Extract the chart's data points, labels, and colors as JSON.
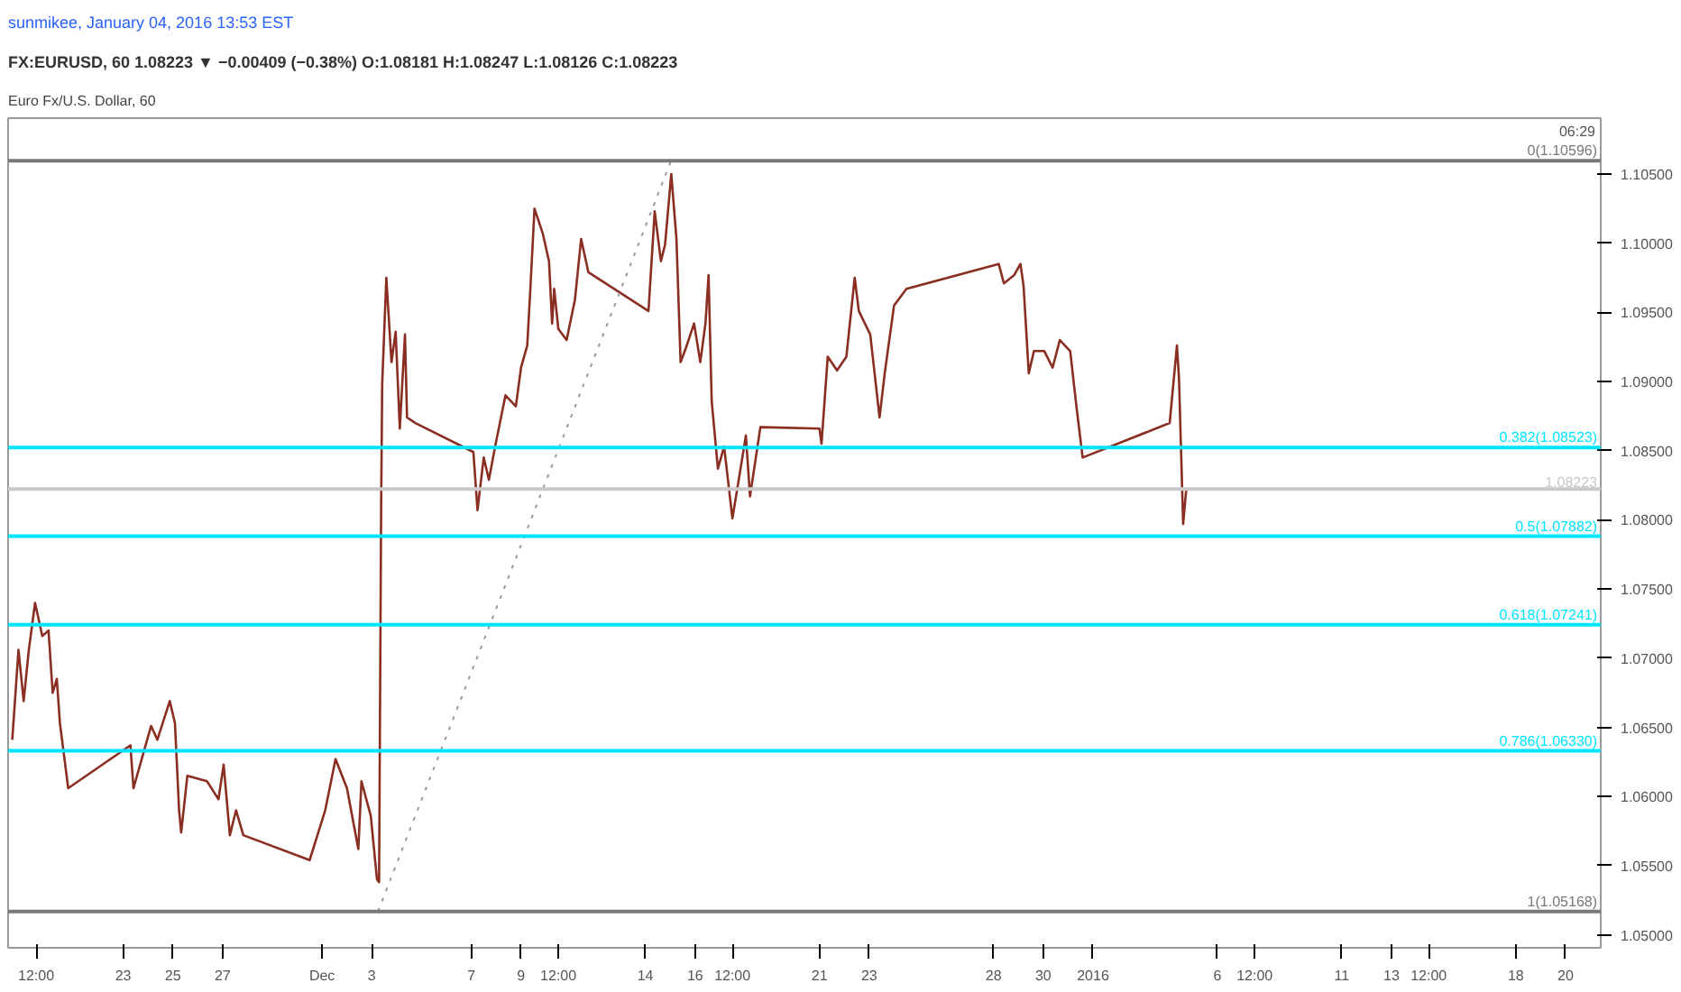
{
  "chart_data": {
    "type": "line",
    "title": "FX:EURUSD, 60 1.08223 ▼ −0.00409 (−0.38%) O:1.08181 H:1.08247 L:1.08126 C:1.08223",
    "subtitle": "Euro Fx/U.S. Dollar, 60",
    "annotations": [
      "sunmikee, January 04, 2016 13:53 EST",
      "06:29"
    ],
    "series": [
      {
        "color": "#8b2e22",
        "x": [
          "2015-11-18T13:00",
          "2015-11-18T19:00",
          "2015-11-19T00:00",
          "2015-11-19T05:00",
          "2015-11-19T11:00",
          "2015-11-19T18:00",
          "2015-11-20T00:00",
          "2015-11-20T04:00",
          "2015-11-20T08:00",
          "2015-11-20T11:00",
          "2015-11-20T19:00",
          "2015-11-23T07:00",
          "2015-11-23T10:00",
          "2015-11-24T03:00",
          "2015-11-24T09:00",
          "2015-11-24T21:00",
          "2015-11-25T02:00",
          "2015-11-25T06:00",
          "2015-11-25T08:00",
          "2015-11-25T14:00",
          "2015-11-26T09:00",
          "2015-11-26T20:00",
          "2015-11-27T01:00",
          "2015-11-27T07:00",
          "2015-11-27T13:00",
          "2015-11-27T20:00",
          "2015-11-30T12:00",
          "2015-12-01T03:00",
          "2015-12-01T13:00",
          "2015-12-02T00:00",
          "2015-12-02T11:00",
          "2015-12-02T14:00",
          "2015-12-02T23:00",
          "2015-12-03T05:00",
          "2015-12-03T07:00",
          "2015-12-03T09:00",
          "2015-12-03T10:00",
          "2015-12-03T14:00",
          "2015-12-03T19:00",
          "2015-12-03T23:00",
          "2015-12-04T03:00",
          "2015-12-04T08:00",
          "2015-12-04T10:00",
          "2015-12-04T18:00",
          "2015-12-07T02:00",
          "2015-12-07T06:00",
          "2015-12-07T12:00",
          "2015-12-07T17:00",
          "2015-12-07T23:00",
          "2015-12-08T09:00",
          "2015-12-08T19:00",
          "2015-12-09T00:00",
          "2015-12-09T06:00",
          "2015-12-09T09:00",
          "2015-12-09T13:00",
          "2015-12-09T21:00",
          "2015-12-10T03:00",
          "2015-12-10T06:00",
          "2015-12-10T08:00",
          "2015-12-10T12:00",
          "2015-12-10T20:00",
          "2015-12-11T04:00",
          "2015-12-11T10:00",
          "2015-12-11T17:00",
          "2015-12-14T03:00",
          "2015-12-14T09:00",
          "2015-12-14T15:00",
          "2015-12-14T19:00",
          "2015-12-15T01:00",
          "2015-12-15T06:00",
          "2015-12-15T10:00",
          "2015-12-15T15:00",
          "2015-12-15T23:00",
          "2015-12-16T05:00",
          "2015-12-16T10:00",
          "2015-12-16T13:00",
          "2015-12-16T16:00",
          "2015-12-16T22:00",
          "2015-12-17T04:00",
          "2015-12-17T12:00",
          "2015-12-17T19:00",
          "2015-12-18T01:00",
          "2015-12-18T05:00",
          "2015-12-18T15:00",
          "2015-12-21T00:00",
          "2015-12-21T02:00",
          "2015-12-21T08:00",
          "2015-12-21T17:00",
          "2015-12-22T02:00",
          "2015-12-22T10:00",
          "2015-12-22T14:00",
          "2015-12-23T01:00",
          "2015-12-23T10:00",
          "2015-12-23T15:00",
          "2015-12-24T00:00",
          "2015-12-24T12:00",
          "2015-12-28T05:00",
          "2015-12-28T10:00",
          "2015-12-28T20:00",
          "2015-12-29T02:00",
          "2015-12-29T05:00",
          "2015-12-29T10:00",
          "2015-12-29T15:00",
          "2015-12-30T01:00",
          "2015-12-30T09:00",
          "2015-12-30T16:00",
          "2015-12-31T02:00",
          "2015-12-31T08:00",
          "2015-12-31T14:00",
          "2016-01-04T02:00",
          "2016-01-04T09:00",
          "2016-01-04T11:00",
          "2016-01-04T15:00",
          "2016-01-04T18:00"
        ],
        "values": [
          1.0641,
          1.0706,
          1.0669,
          1.0706,
          1.074,
          1.0716,
          1.072,
          1.0675,
          1.0685,
          1.0653,
          1.0606,
          1.0637,
          1.0606,
          1.0651,
          1.0641,
          1.0669,
          1.0653,
          1.059,
          1.0574,
          1.0615,
          1.0611,
          1.0598,
          1.0623,
          1.0572,
          1.059,
          1.0572,
          1.0554,
          1.059,
          1.0627,
          1.0606,
          1.0562,
          1.0611,
          1.0586,
          1.054,
          1.0538,
          1.0809,
          1.0898,
          1.0975,
          1.0914,
          1.0936,
          1.0866,
          1.0934,
          1.0874,
          1.087,
          1.0849,
          1.0807,
          1.0845,
          1.0829,
          1.0853,
          1.089,
          1.0882,
          1.091,
          1.0926,
          1.0967,
          1.1025,
          1.1007,
          1.0987,
          1.0942,
          1.0967,
          1.0938,
          1.093,
          1.0959,
          1.1003,
          1.0979,
          1.0951,
          1.1023,
          1.0987,
          1.0999,
          1.105,
          1.1003,
          1.0914,
          1.0924,
          1.0942,
          1.0914,
          1.0942,
          1.0977,
          1.0886,
          1.0837,
          1.0853,
          1.0801,
          1.0833,
          1.0861,
          1.0817,
          1.0867,
          1.0866,
          1.0855,
          1.0918,
          1.0908,
          1.0918,
          1.0975,
          1.0951,
          1.0934,
          1.0874,
          1.0906,
          1.0955,
          1.0967,
          1.0985,
          1.0971,
          1.0977,
          1.0985,
          1.0969,
          1.0906,
          1.0922,
          1.0922,
          1.091,
          1.093,
          1.0922,
          1.0882,
          1.0845,
          1.087,
          1.0926,
          1.0902,
          1.0797,
          1.0822
        ]
      },
      {
        "type": "line",
        "color": "#9a9a9a",
        "line_style": "dotted",
        "x": [
          "2015-12-03T06:00",
          "2015-12-15T01:00"
        ],
        "values": [
          1.0517,
          1.106
        ]
      }
    ],
    "ref_lines": [
      {
        "axis": "y",
        "value": 1.10596,
        "label": "0(1.10596)",
        "color": "#787878"
      },
      {
        "axis": "y",
        "value": 1.08523,
        "label": "0.382(1.08523)",
        "color": "#00e5ff"
      },
      {
        "axis": "y",
        "value": 1.08223,
        "label": "1.08223",
        "color": "#c8c8c8"
      },
      {
        "axis": "y",
        "value": 1.07882,
        "label": "0.5(1.07882)",
        "color": "#00e5ff"
      },
      {
        "axis": "y",
        "value": 1.07241,
        "label": "0.618(1.07241)",
        "color": "#00e5ff"
      },
      {
        "axis": "y",
        "value": 1.0633,
        "label": "0.786(1.06330)",
        "color": "#00e5ff"
      },
      {
        "axis": "y",
        "value": 1.05168,
        "label": "1(1.05168)",
        "color": "#787878"
      }
    ],
    "xlim": [
      "2015-11-18T09:00",
      "2016-01-21T10:00"
    ],
    "xticks": [
      {
        "value": "2015-11-19T12:00",
        "label": "12:00"
      },
      {
        "value": "2015-11-23",
        "label": "23"
      },
      {
        "value": "2015-11-25",
        "label": "25"
      },
      {
        "value": "2015-11-27",
        "label": "27"
      },
      {
        "value": "2015-12-01",
        "label": "Dec"
      },
      {
        "value": "2015-12-03",
        "label": "3"
      },
      {
        "value": "2015-12-07",
        "label": "7"
      },
      {
        "value": "2015-12-09",
        "label": "9"
      },
      {
        "value": "2015-12-10T12:00",
        "label": "12:00"
      },
      {
        "value": "2015-12-14",
        "label": "14"
      },
      {
        "value": "2015-12-16",
        "label": "16"
      },
      {
        "value": "2015-12-17T12:00",
        "label": "12:00"
      },
      {
        "value": "2015-12-21",
        "label": "21"
      },
      {
        "value": "2015-12-23",
        "label": "23"
      },
      {
        "value": "2015-12-28",
        "label": "28"
      },
      {
        "value": "2015-12-30",
        "label": "30"
      },
      {
        "value": "2016-01-01",
        "label": "2016"
      },
      {
        "value": "2016-01-06",
        "label": "6"
      },
      {
        "value": "2016-01-07T12:00",
        "label": "12:00"
      },
      {
        "value": "2016-01-11",
        "label": "11"
      },
      {
        "value": "2016-01-13",
        "label": "13"
      },
      {
        "value": "2016-01-14T12:00",
        "label": "12:00"
      },
      {
        "value": "2016-01-18",
        "label": "18"
      },
      {
        "value": "2016-01-20",
        "label": "20"
      }
    ],
    "ylim": [
      1.04906,
      1.10904
    ],
    "yticks": [
      {
        "value": 1.05,
        "label": "1.05000"
      },
      {
        "value": 1.055,
        "label": "1.05500"
      },
      {
        "value": 1.06,
        "label": "1.06000"
      },
      {
        "value": 1.065,
        "label": "1.06500"
      },
      {
        "value": 1.07,
        "label": "1.07000"
      },
      {
        "value": 1.075,
        "label": "1.07500"
      },
      {
        "value": 1.08,
        "label": "1.08000"
      },
      {
        "value": 1.085,
        "label": "1.08500"
      },
      {
        "value": 1.09,
        "label": "1.09000"
      },
      {
        "value": 1.095,
        "label": "1.09500"
      },
      {
        "value": 1.1,
        "label": "1.10000"
      },
      {
        "value": 1.105,
        "label": "1.10500"
      }
    ],
    "grid": false,
    "marker": "none",
    "line_style": "solid"
  }
}
